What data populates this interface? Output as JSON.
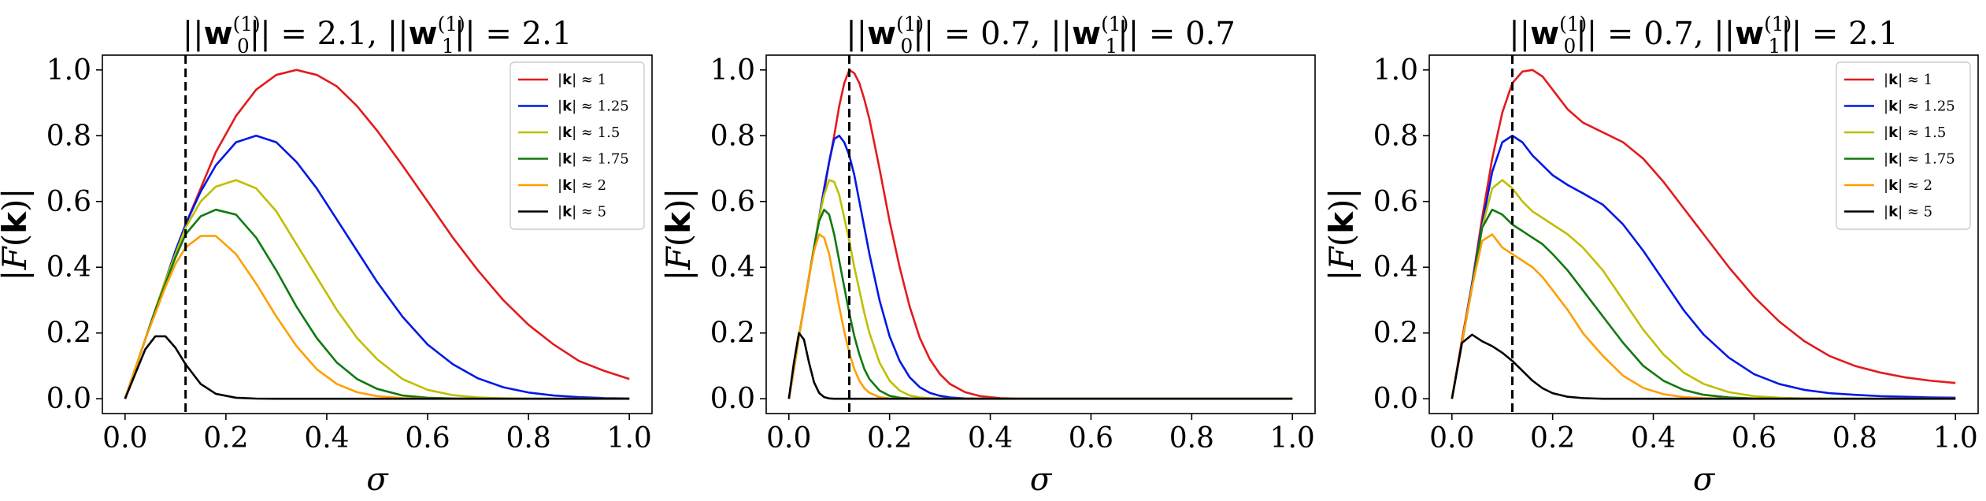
{
  "chart_data": [
    {
      "type": "line",
      "title": "||w0(1)|| = 2.1, ||w1(1)|| = 2.1",
      "xlabel": "σ",
      "ylabel": "|F(k)|",
      "xlim": [
        0,
        1
      ],
      "ylim": [
        0,
        1.0
      ],
      "xticks": [
        "0.0",
        "0.2",
        "0.4",
        "0.6",
        "0.8",
        "1.0"
      ],
      "yticks": [
        "0.0",
        "0.2",
        "0.4",
        "0.6",
        "0.8",
        "1.0"
      ],
      "vline": {
        "x": 0.12,
        "style": "dashed"
      },
      "legend": "top-right",
      "x": [
        0,
        0.02,
        0.04,
        0.06,
        0.08,
        0.1,
        0.12,
        0.15,
        0.18,
        0.22,
        0.26,
        0.3,
        0.34,
        0.38,
        0.42,
        0.46,
        0.5,
        0.55,
        0.6,
        0.65,
        0.7,
        0.75,
        0.8,
        0.85,
        0.9,
        0.95,
        1.0
      ],
      "series": [
        {
          "name": "|k| ≈ 1",
          "values": [
            0,
            0.09,
            0.18,
            0.27,
            0.35,
            0.44,
            0.53,
            0.64,
            0.75,
            0.86,
            0.94,
            0.985,
            1.0,
            0.985,
            0.95,
            0.89,
            0.815,
            0.71,
            0.6,
            0.49,
            0.39,
            0.3,
            0.225,
            0.165,
            0.115,
            0.085,
            0.06
          ]
        },
        {
          "name": "|k| ≈ 1.25",
          "values": [
            0,
            0.09,
            0.18,
            0.27,
            0.36,
            0.45,
            0.53,
            0.63,
            0.71,
            0.78,
            0.8,
            0.78,
            0.72,
            0.64,
            0.545,
            0.45,
            0.355,
            0.25,
            0.165,
            0.105,
            0.062,
            0.035,
            0.019,
            0.01,
            0.005,
            0.002,
            0.001
          ]
        },
        {
          "name": "|k| ≈ 1.5",
          "values": [
            0,
            0.09,
            0.18,
            0.27,
            0.36,
            0.44,
            0.52,
            0.6,
            0.645,
            0.665,
            0.64,
            0.57,
            0.47,
            0.37,
            0.27,
            0.185,
            0.12,
            0.06,
            0.027,
            0.011,
            0.004,
            0.0015,
            0.0005,
            0,
            0,
            0,
            0
          ]
        },
        {
          "name": "|k| ≈ 1.75",
          "values": [
            0,
            0.09,
            0.18,
            0.27,
            0.35,
            0.43,
            0.5,
            0.555,
            0.575,
            0.56,
            0.49,
            0.39,
            0.28,
            0.185,
            0.11,
            0.06,
            0.03,
            0.01,
            0.003,
            0.001,
            0,
            0,
            0,
            0,
            0,
            0,
            0
          ]
        },
        {
          "name": "|k| ≈ 2",
          "values": [
            0,
            0.09,
            0.18,
            0.26,
            0.34,
            0.41,
            0.46,
            0.495,
            0.495,
            0.44,
            0.35,
            0.25,
            0.16,
            0.09,
            0.045,
            0.02,
            0.008,
            0.002,
            0.0005,
            0,
            0,
            0,
            0,
            0,
            0,
            0,
            0
          ]
        },
        {
          "name": "|k| ≈ 5",
          "values": [
            0,
            0.075,
            0.15,
            0.19,
            0.19,
            0.155,
            0.105,
            0.045,
            0.015,
            0.003,
            0.0005,
            0,
            0,
            0,
            0,
            0,
            0,
            0,
            0,
            0,
            0,
            0,
            0,
            0,
            0,
            0,
            0
          ]
        }
      ]
    },
    {
      "type": "line",
      "title": "||w0(1)|| = 0.7, ||w1(1)|| = 0.7",
      "xlabel": "σ",
      "ylabel": "|F(k)|",
      "xlim": [
        0,
        1
      ],
      "ylim": [
        0,
        1.0
      ],
      "xticks": [
        "0.0",
        "0.2",
        "0.4",
        "0.6",
        "0.8",
        "1.0"
      ],
      "yticks": [
        "0.0",
        "0.2",
        "0.4",
        "0.6",
        "0.8",
        "1.0"
      ],
      "vline": {
        "x": 0.12,
        "style": "dashed"
      },
      "legend": "none",
      "x": [
        0,
        0.01,
        0.02,
        0.03,
        0.04,
        0.05,
        0.06,
        0.07,
        0.08,
        0.09,
        0.1,
        0.11,
        0.12,
        0.13,
        0.14,
        0.15,
        0.16,
        0.18,
        0.2,
        0.22,
        0.24,
        0.26,
        0.28,
        0.3,
        0.32,
        0.35,
        0.38,
        0.42,
        0.46,
        0.5,
        0.6,
        0.8,
        1.0
      ],
      "series": [
        {
          "name": "|k| ≈ 1",
          "values": [
            0,
            0.09,
            0.19,
            0.28,
            0.37,
            0.46,
            0.55,
            0.63,
            0.72,
            0.8,
            0.89,
            0.96,
            1.0,
            0.99,
            0.96,
            0.91,
            0.85,
            0.7,
            0.54,
            0.4,
            0.28,
            0.185,
            0.12,
            0.075,
            0.045,
            0.02,
            0.008,
            0.002,
            0.0005,
            0,
            0,
            0,
            0
          ]
        },
        {
          "name": "|k| ≈ 1.25",
          "values": [
            0,
            0.09,
            0.19,
            0.28,
            0.37,
            0.46,
            0.55,
            0.64,
            0.72,
            0.79,
            0.8,
            0.78,
            0.74,
            0.68,
            0.6,
            0.52,
            0.44,
            0.3,
            0.19,
            0.115,
            0.065,
            0.035,
            0.018,
            0.009,
            0.004,
            0.001,
            0,
            0,
            0,
            0,
            0,
            0,
            0
          ]
        },
        {
          "name": "|k| ≈ 1.5",
          "values": [
            0,
            0.09,
            0.19,
            0.28,
            0.37,
            0.46,
            0.55,
            0.62,
            0.665,
            0.66,
            0.62,
            0.55,
            0.48,
            0.4,
            0.33,
            0.26,
            0.2,
            0.11,
            0.055,
            0.025,
            0.01,
            0.004,
            0.0015,
            0.0005,
            0,
            0,
            0,
            0,
            0,
            0,
            0,
            0,
            0
          ]
        },
        {
          "name": "|k| ≈ 1.75",
          "values": [
            0,
            0.09,
            0.19,
            0.28,
            0.37,
            0.46,
            0.54,
            0.575,
            0.56,
            0.5,
            0.42,
            0.34,
            0.26,
            0.19,
            0.135,
            0.09,
            0.06,
            0.025,
            0.009,
            0.003,
            0.001,
            0,
            0,
            0,
            0,
            0,
            0,
            0,
            0,
            0,
            0,
            0,
            0
          ]
        },
        {
          "name": "|k| ≈ 2",
          "values": [
            0,
            0.09,
            0.19,
            0.28,
            0.37,
            0.45,
            0.5,
            0.49,
            0.44,
            0.36,
            0.28,
            0.205,
            0.14,
            0.09,
            0.055,
            0.032,
            0.018,
            0.005,
            0.001,
            0,
            0,
            0,
            0,
            0,
            0,
            0,
            0,
            0,
            0,
            0,
            0,
            0,
            0
          ]
        },
        {
          "name": "|k| ≈ 5",
          "values": [
            0,
            0.11,
            0.2,
            0.18,
            0.11,
            0.05,
            0.018,
            0.005,
            0.001,
            0,
            0,
            0,
            0,
            0,
            0,
            0,
            0,
            0,
            0,
            0,
            0,
            0,
            0,
            0,
            0,
            0,
            0,
            0,
            0,
            0,
            0,
            0,
            0
          ]
        }
      ]
    },
    {
      "type": "line",
      "title": "||w0(1)|| = 0.7, ||w1(1)|| = 2.1",
      "xlabel": "σ",
      "ylabel": "|F(k)|",
      "xlim": [
        0,
        1
      ],
      "ylim": [
        0,
        1.0
      ],
      "xticks": [
        "0.0",
        "0.2",
        "0.4",
        "0.6",
        "0.8",
        "1.0"
      ],
      "yticks": [
        "0.0",
        "0.2",
        "0.4",
        "0.6",
        "0.8",
        "1.0"
      ],
      "vline": {
        "x": 0.12,
        "style": "dashed"
      },
      "legend": "top-right",
      "x": [
        0,
        0.02,
        0.04,
        0.06,
        0.08,
        0.1,
        0.12,
        0.14,
        0.16,
        0.18,
        0.2,
        0.23,
        0.26,
        0.3,
        0.34,
        0.38,
        0.42,
        0.46,
        0.5,
        0.55,
        0.6,
        0.65,
        0.7,
        0.75,
        0.8,
        0.85,
        0.9,
        0.95,
        1.0
      ],
      "series": [
        {
          "name": "|k| ≈ 1",
          "values": [
            0,
            0.18,
            0.35,
            0.55,
            0.73,
            0.87,
            0.96,
            0.995,
            1.0,
            0.98,
            0.94,
            0.88,
            0.84,
            0.81,
            0.78,
            0.73,
            0.66,
            0.58,
            0.5,
            0.4,
            0.31,
            0.235,
            0.175,
            0.13,
            0.1,
            0.08,
            0.065,
            0.055,
            0.048
          ]
        },
        {
          "name": "|k| ≈ 1.25",
          "values": [
            0,
            0.17,
            0.35,
            0.53,
            0.69,
            0.78,
            0.8,
            0.78,
            0.74,
            0.71,
            0.68,
            0.65,
            0.625,
            0.59,
            0.53,
            0.45,
            0.36,
            0.27,
            0.195,
            0.125,
            0.075,
            0.045,
            0.027,
            0.017,
            0.012,
            0.008,
            0.006,
            0.004,
            0.003
          ]
        },
        {
          "name": "|k| ≈ 1.5",
          "values": [
            0,
            0.17,
            0.34,
            0.52,
            0.64,
            0.665,
            0.64,
            0.6,
            0.57,
            0.55,
            0.53,
            0.5,
            0.46,
            0.39,
            0.3,
            0.21,
            0.135,
            0.08,
            0.045,
            0.02,
            0.008,
            0.003,
            0.001,
            0,
            0,
            0,
            0,
            0,
            0
          ]
        },
        {
          "name": "|k| ≈ 1.75",
          "values": [
            0,
            0.17,
            0.34,
            0.52,
            0.575,
            0.56,
            0.53,
            0.51,
            0.49,
            0.47,
            0.44,
            0.39,
            0.33,
            0.25,
            0.17,
            0.1,
            0.055,
            0.027,
            0.012,
            0.004,
            0.001,
            0,
            0,
            0,
            0,
            0,
            0,
            0,
            0
          ]
        },
        {
          "name": "|k| ≈ 2",
          "values": [
            0,
            0.17,
            0.34,
            0.48,
            0.5,
            0.46,
            0.44,
            0.42,
            0.4,
            0.37,
            0.33,
            0.27,
            0.2,
            0.13,
            0.07,
            0.033,
            0.014,
            0.005,
            0.002,
            0,
            0,
            0,
            0,
            0,
            0,
            0,
            0,
            0,
            0
          ]
        },
        {
          "name": "|k| ≈ 5",
          "values": [
            0,
            0.17,
            0.195,
            0.175,
            0.16,
            0.14,
            0.115,
            0.085,
            0.055,
            0.032,
            0.017,
            0.006,
            0.002,
            0,
            0,
            0,
            0,
            0,
            0,
            0,
            0,
            0,
            0,
            0,
            0,
            0,
            0,
            0,
            0
          ]
        }
      ]
    }
  ],
  "colors": {
    "series": [
      "#e31a1c",
      "#0019e5",
      "#bfbf00",
      "#107a10",
      "#ff9f00",
      "#000000"
    ],
    "vline": "#000000",
    "axes": "#000000"
  }
}
